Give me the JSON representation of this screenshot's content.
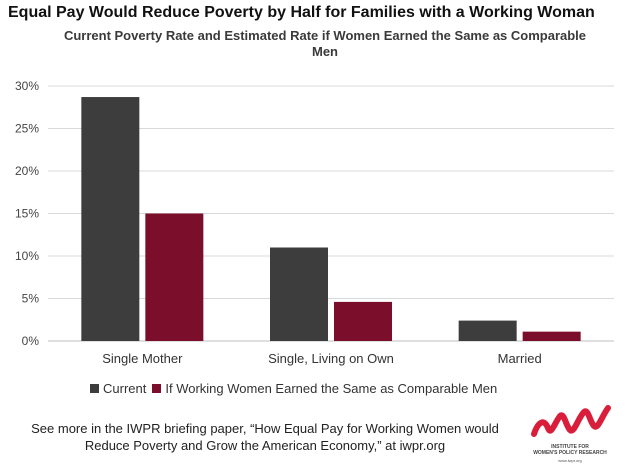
{
  "title": "Equal Pay Would Reduce Poverty by Half for Families with a Working Woman",
  "subtitle": "Current Poverty Rate and Estimated Rate if Women Earned the Same as Comparable Men",
  "footer": "See more in the IWPR briefing paper, “How Equal Pay for Working Women would Reduce Poverty and Grow the American Economy,” at iwpr.org",
  "logo": {
    "name": "Institute for Women's Policy Research",
    "url_text": "www.iwpr.org",
    "color": "#d81e3a"
  },
  "colors": {
    "current": "#3d3d3d",
    "equal_pay": "#7b0e2a",
    "grid": "#d9d9d9",
    "axis": "#bfbfbf"
  },
  "chart_data": {
    "type": "bar",
    "categories": [
      "Single Mother",
      "Single, Living on Own",
      "Married"
    ],
    "series": [
      {
        "name": "Current",
        "values": [
          28.7,
          11.0,
          2.4
        ]
      },
      {
        "name": "If Working Women Earned the Same as Comparable Men",
        "values": [
          15.0,
          4.6,
          1.1
        ]
      }
    ],
    "ylim": [
      0,
      30
    ],
    "yticks": [
      0,
      5,
      10,
      15,
      20,
      25,
      30
    ],
    "ytick_labels": [
      "0%",
      "5%",
      "10%",
      "15%",
      "20%",
      "25%",
      "30%"
    ],
    "grid": true,
    "legend": "bottom",
    "xlabel": "",
    "ylabel": ""
  }
}
